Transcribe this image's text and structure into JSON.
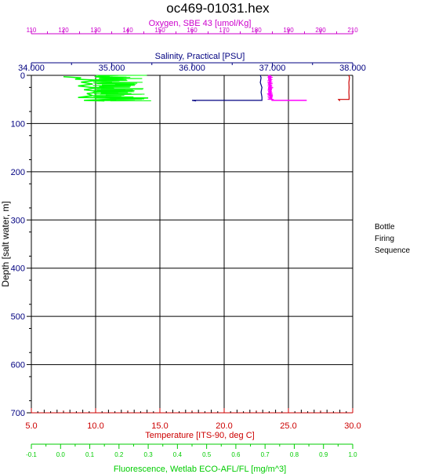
{
  "title": "oc469-01031.hex",
  "side_note": [
    "Bottle",
    "Firing",
    "Sequence"
  ],
  "chart_data": {
    "type": "line",
    "title": "oc469-01031.hex",
    "y_axis": {
      "label": "Depth [salt water, m]",
      "range": [
        0,
        700
      ],
      "ticks": [
        0,
        100,
        200,
        300,
        400,
        500,
        600,
        700
      ],
      "inverted": true,
      "grid": true
    },
    "x_axes": [
      {
        "id": "oxygen",
        "label": "Oxygen, SBE 43 [umol/Kg]",
        "color": "#cc00cc",
        "position": "top-outer",
        "range": [
          110,
          210
        ],
        "ticks": [
          110,
          120,
          130,
          140,
          150,
          160,
          170,
          180,
          190,
          200,
          210
        ]
      },
      {
        "id": "salinity",
        "label": "Salinity, Practical [PSU]",
        "color": "#000080",
        "position": "top-inner",
        "range": [
          34.0,
          38.0
        ],
        "ticks": [
          "34.000",
          "35.000",
          "36.000",
          "37.000",
          "38.000"
        ]
      },
      {
        "id": "temperature",
        "label": "Temperature [ITS-90, deg C]",
        "color": "#cc0000",
        "position": "bottom-inner",
        "range": [
          5.0,
          30.0
        ],
        "ticks": [
          "5.0",
          "10.0",
          "15.0",
          "20.0",
          "25.0",
          "30.0"
        ],
        "grid": true
      },
      {
        "id": "fluorescence",
        "label": "Fluorescence, Wetlab ECO-AFL/FL [mg/m^3]",
        "color": "#00cc00",
        "position": "bottom-outer",
        "range": [
          -0.1,
          1.0
        ],
        "ticks": [
          "-0.1",
          "0.0",
          "0.1",
          "0.2",
          "0.3",
          "0.4",
          "0.5",
          "0.6",
          "0.7",
          "0.8",
          "0.9",
          "1.0"
        ]
      }
    ],
    "series": [
      {
        "axis": "fluorescence",
        "color": "#00ff00",
        "mode": "noisy",
        "points": [
          [
            0.01,
            3
          ],
          [
            0.07,
            5
          ],
          [
            0.05,
            8
          ],
          [
            0.13,
            10
          ],
          [
            0.07,
            14
          ],
          [
            0.11,
            18
          ],
          [
            0.06,
            22
          ],
          [
            0.12,
            26
          ],
          [
            0.08,
            30
          ],
          [
            0.14,
            34
          ],
          [
            0.09,
            38
          ],
          [
            0.11,
            42
          ],
          [
            0.06,
            46
          ],
          [
            0.3,
            47
          ],
          [
            0.19,
            49
          ],
          [
            0.08,
            52
          ],
          [
            0.15,
            53
          ]
        ],
        "spread": [
          0.11,
          0.33
        ],
        "end_depth": 53
      },
      {
        "axis": "oxygen",
        "color": "#ff00ff",
        "mode": "noisy",
        "points": [
          [
            184.5,
            0
          ],
          [
            184.5,
            10
          ],
          [
            184.3,
            20
          ],
          [
            184.6,
            30
          ],
          [
            184.4,
            40
          ],
          [
            184.8,
            50
          ],
          [
            184.9,
            52
          ],
          [
            195.5,
            52
          ],
          [
            195.5,
            53
          ]
        ],
        "spread": [
          183.5,
          185.8
        ],
        "end_depth": 50
      },
      {
        "axis": "salinity",
        "color": "#000080",
        "mode": "line",
        "points": [
          [
            36.85,
            0
          ],
          [
            36.86,
            5
          ],
          [
            36.85,
            15
          ],
          [
            36.87,
            25
          ],
          [
            36.86,
            35
          ],
          [
            36.87,
            45
          ],
          [
            36.87,
            52
          ],
          [
            36.0,
            52
          ],
          [
            36.05,
            53
          ]
        ]
      },
      {
        "axis": "temperature",
        "color": "#cc0000",
        "mode": "line",
        "points": [
          [
            29.7,
            0
          ],
          [
            29.75,
            5
          ],
          [
            29.7,
            15
          ],
          [
            29.72,
            25
          ],
          [
            29.7,
            35
          ],
          [
            29.72,
            45
          ],
          [
            29.72,
            50
          ],
          [
            28.9,
            50
          ],
          [
            29.0,
            53
          ]
        ]
      }
    ]
  }
}
